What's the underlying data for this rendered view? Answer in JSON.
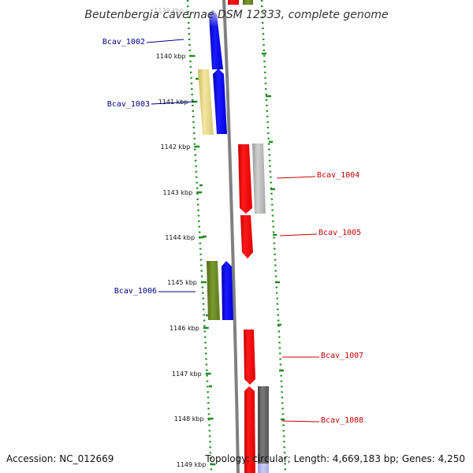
{
  "title": "Beutenbergia cavernae DSM 12333, complete genome",
  "accession": "Accession: NC_012669",
  "topology": "Topology: circular; Length: 4,669,183 bp; Genes: 4,250",
  "top_tick_label": "1139 kbp",
  "ticks": [
    "1140 kbp",
    "1141 kbp",
    "1142 kbp",
    "1143 kbp",
    "1144 kbp",
    "1145 kbp",
    "1146 kbp",
    "1147 kbp",
    "1148 kbp",
    "1149 kbp"
  ],
  "genes": [
    {
      "label": "Bcav_1002",
      "color": "#00008b"
    },
    {
      "label": "Bcav_1003",
      "color": "#00008b"
    },
    {
      "label": "Bcav_1004",
      "color": "#cc0000"
    },
    {
      "label": "Bcav_1005",
      "color": "#cc0000"
    },
    {
      "label": "Bcav_1006",
      "color": "#00008b"
    },
    {
      "label": "Bcav_1007",
      "color": "#cc0000"
    },
    {
      "label": "Bcav_1008",
      "color": "#cc0000"
    }
  ],
  "colors": {
    "forward_gene": "#ff0000",
    "reverse_gene": "#0000ff",
    "gc_track": "#228b22",
    "backbone": "#808080"
  }
}
